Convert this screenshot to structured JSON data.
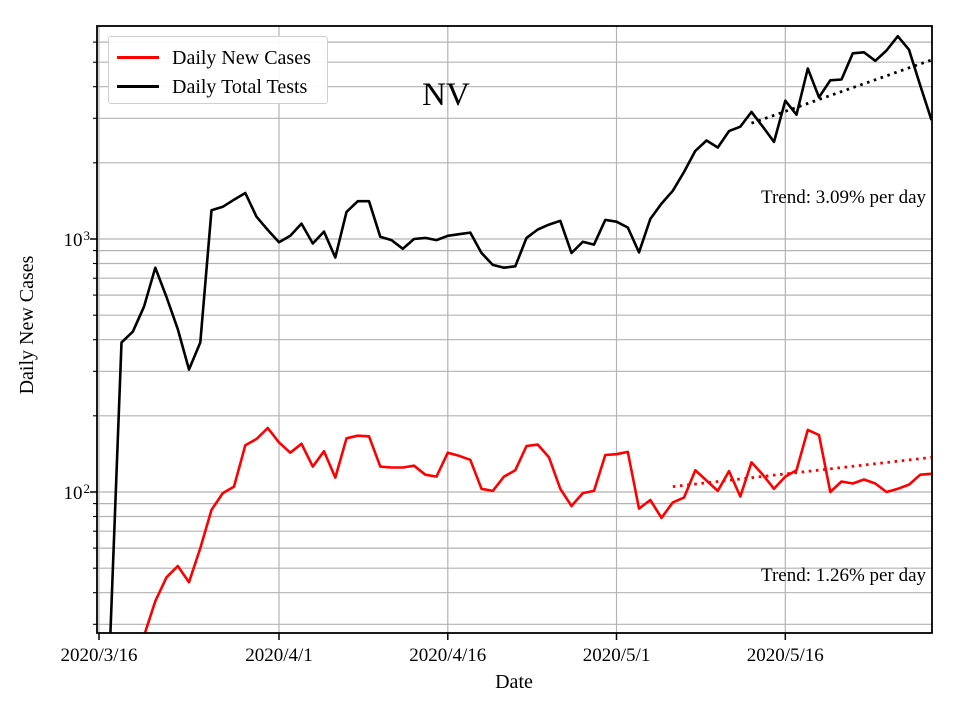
{
  "chart_data": {
    "type": "line",
    "title": "NV",
    "xlabel": "Date",
    "ylabel": "Daily New Cases",
    "y_scale": "log",
    "ylim": [
      27.4,
      7000
    ],
    "grid": true,
    "legend_position": "upper left",
    "grid_color": "#b3b3b3",
    "axis_color": "#000000",
    "x_start_date": "2020/3/16",
    "x_unit": "days since 2020/3/16, daily cadence",
    "x_ticks": [
      {
        "label": "2020/3/16",
        "day": 0
      },
      {
        "label": "2020/4/1",
        "day": 16
      },
      {
        "label": "2020/4/16",
        "day": 31
      },
      {
        "label": "2020/5/1",
        "day": 46
      },
      {
        "label": "2020/5/16",
        "day": 61
      }
    ],
    "y_tick_labels": [
      {
        "mantissa": "10",
        "exponent": "3",
        "value": 1000
      },
      {
        "mantissa": "10",
        "exponent": "2",
        "value": 100
      }
    ],
    "y_major_gridlines": [
      100,
      1000
    ],
    "y_minor_gridlines": [
      30,
      40,
      50,
      60,
      70,
      80,
      90,
      200,
      300,
      400,
      500,
      600,
      700,
      800,
      900,
      2000,
      3000,
      4000,
      5000,
      6000
    ],
    "series": [
      {
        "name": "Daily New Cases",
        "color": "#ff0000",
        "start_date": "2020/3/20",
        "start_day_offset": 4,
        "values": [
          27,
          37,
          46,
          51,
          44,
          60,
          85,
          99,
          105,
          153,
          162,
          179,
          157,
          143,
          155,
          126,
          145,
          114,
          163,
          167,
          166,
          126,
          125,
          125,
          127,
          117,
          115,
          143,
          139,
          134,
          103,
          101,
          115,
          122,
          152,
          154,
          137,
          103,
          88,
          99,
          101,
          140,
          141,
          144,
          86,
          93,
          79,
          91,
          95,
          122,
          111,
          101,
          121,
          96,
          131,
          117,
          103,
          115,
          122,
          176,
          168,
          100,
          110,
          108,
          112,
          108,
          100,
          103,
          107,
          117,
          118
        ]
      },
      {
        "name": "Daily Total Tests",
        "color": "#000000",
        "start_date": "2020/3/17",
        "start_day_offset": 1,
        "values": [
          27,
          390,
          430,
          540,
          770,
          590,
          440,
          305,
          390,
          1300,
          1340,
          1430,
          1520,
          1225,
          1085,
          970,
          1030,
          1150,
          960,
          1070,
          845,
          1280,
          1410,
          1410,
          1020,
          990,
          915,
          1000,
          1010,
          990,
          1030,
          1045,
          1060,
          880,
          790,
          770,
          780,
          1010,
          1090,
          1140,
          1180,
          880,
          975,
          950,
          1190,
          1170,
          1110,
          885,
          1200,
          1380,
          1550,
          1840,
          2230,
          2450,
          2300,
          2670,
          2780,
          3180,
          2780,
          2420,
          3520,
          3100,
          4720,
          3630,
          4240,
          4270,
          5420,
          5470,
          5060,
          5560,
          6330,
          5600,
          4040,
          2950
        ]
      }
    ],
    "trend_lines": [
      {
        "label": "Trend: 3.09% per day",
        "series": "Daily Total Tests",
        "color": "#000000",
        "rate_percent_per_day": 3.09,
        "start_day_offset": 58,
        "start_value": 2870,
        "end_day_offset": 74,
        "end_value": 5100
      },
      {
        "label": "Trend: 1.26% per day",
        "series": "Daily New Cases",
        "color": "#ff0000",
        "rate_percent_per_day": 1.26,
        "start_day_offset": 51,
        "start_value": 105,
        "end_day_offset": 74,
        "end_value": 137
      }
    ],
    "legend": {
      "entries": [
        {
          "label": "Daily New Cases",
          "color": "#ff0000"
        },
        {
          "label": "Daily Total Tests",
          "color": "#000000"
        }
      ]
    }
  }
}
